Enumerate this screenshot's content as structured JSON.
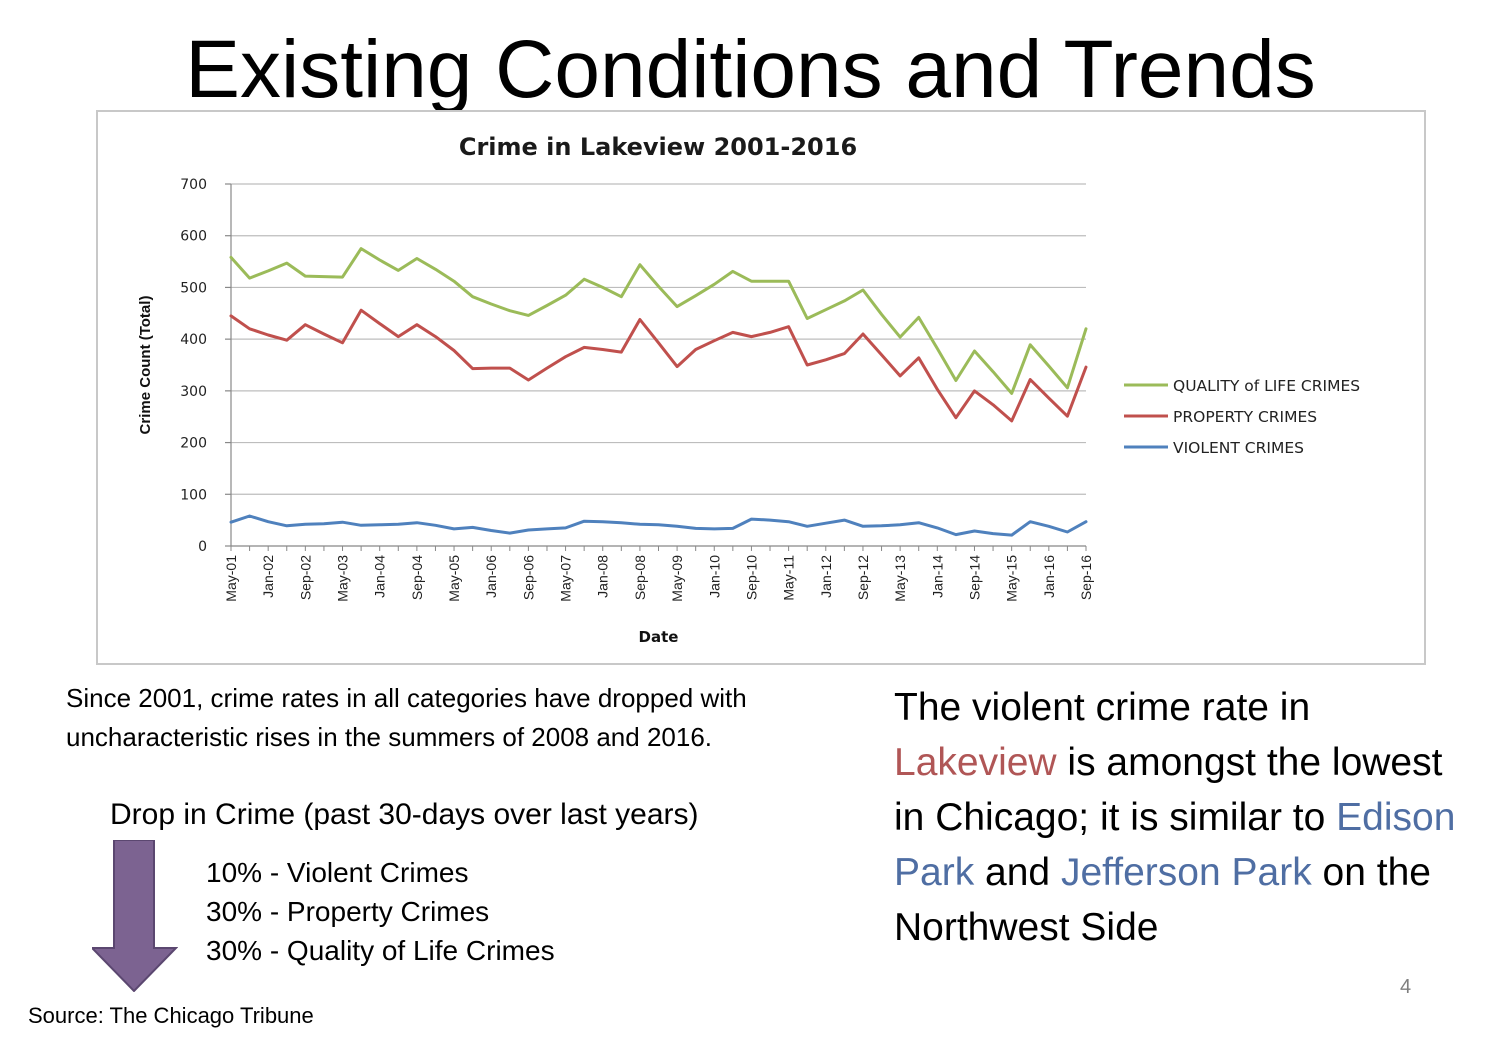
{
  "slide": {
    "title": "Existing Conditions and Trends",
    "caption": "Since 2001, crime rates in all categories have dropped with uncharacteristic rises in the summers of 2008 and 2016.",
    "drop_title": "Drop in Crime (past 30-days over last years)",
    "drop_items": [
      "10% - Violent Crimes",
      "30% - Property Crimes",
      "30% - Quality of Life Crimes"
    ],
    "right_text": {
      "p1": "The violent crime rate in ",
      "lakeview": "Lakeview",
      "p2": " is amongst the lowest in Chicago; it is similar to ",
      "edison": "Edison Park",
      "p3": " and ",
      "jefferson": "Jefferson Park",
      "p4": " on the Northwest Side"
    },
    "page_number": "4",
    "source": "Source: The Chicago Tribune",
    "colors": {
      "highlight_red": "#b05656",
      "highlight_blue": "#4f6ea3",
      "arrow": "#7c6391"
    }
  },
  "chart_data": {
    "type": "line",
    "title": "Crime in Lakeview 2001-2016",
    "xlabel": "Date",
    "ylabel": "Crime Count (Total)",
    "ylim": [
      0,
      700
    ],
    "yticks": [
      0,
      100,
      200,
      300,
      400,
      500,
      600,
      700
    ],
    "grid": true,
    "legend_position": "right",
    "x": [
      "May-01",
      "Sep-01",
      "Jan-02",
      "May-02",
      "Sep-02",
      "Jan-03",
      "May-03",
      "Sep-03",
      "Jan-04",
      "May-04",
      "Sep-04",
      "Jan-05",
      "May-05",
      "Sep-05",
      "Jan-06",
      "May-06",
      "Sep-06",
      "Jan-07",
      "May-07",
      "Sep-07",
      "Jan-08",
      "May-08",
      "Sep-08",
      "Jan-09",
      "May-09",
      "Sep-09",
      "Jan-10",
      "May-10",
      "Sep-10",
      "Jan-11",
      "May-11",
      "Sep-11",
      "Jan-12",
      "May-12",
      "Sep-12",
      "Jan-13",
      "May-13",
      "Sep-13",
      "Jan-14",
      "May-14",
      "Sep-14",
      "Jan-15",
      "May-15",
      "Sep-15",
      "Jan-16",
      "May-16",
      "Sep-16"
    ],
    "x_tick_labels": [
      "May-01",
      "Jan-02",
      "Sep-02",
      "May-03",
      "Jan-04",
      "Sep-04",
      "May-05",
      "Jan-06",
      "Sep-06",
      "May-07",
      "Jan-08",
      "Sep-08",
      "May-09",
      "Jan-10",
      "Sep-10",
      "May-11",
      "Jan-12",
      "Sep-12",
      "May-13",
      "Jan-14",
      "Sep-14",
      "May-15",
      "Jan-16",
      "Sep-16"
    ],
    "series": [
      {
        "name": "QUALITY of LIFE CRIMES",
        "color": "#9bbb59",
        "values": [
          558,
          518,
          532,
          547,
          522,
          521,
          520,
          575,
          553,
          533,
          556,
          535,
          512,
          482,
          468,
          455,
          446,
          465,
          485,
          516,
          500,
          482,
          544,
          502,
          463,
          484,
          506,
          531,
          512,
          512,
          512,
          440,
          457,
          474,
          495,
          448,
          404,
          442,
          382,
          320,
          377,
          337,
          295,
          389,
          348,
          306,
          420
        ]
      },
      {
        "name": "PROPERTY CRIMES",
        "color": "#c0504d",
        "values": [
          445,
          420,
          408,
          398,
          428,
          410,
          393,
          456,
          430,
          405,
          428,
          405,
          378,
          343,
          344,
          344,
          321,
          344,
          366,
          384,
          380,
          375,
          438,
          393,
          347,
          380,
          397,
          413,
          405,
          413,
          424,
          350,
          360,
          372,
          410,
          370,
          329,
          364,
          303,
          248,
          300,
          273,
          242,
          322,
          286,
          251,
          346
        ]
      },
      {
        "name": "VIOLENT CRIMES",
        "color": "#4f81bd",
        "values": [
          46,
          58,
          47,
          39,
          42,
          43,
          46,
          40,
          41,
          42,
          45,
          40,
          33,
          36,
          30,
          25,
          31,
          33,
          35,
          48,
          47,
          45,
          42,
          41,
          38,
          34,
          33,
          34,
          52,
          50,
          47,
          38,
          44,
          50,
          38,
          39,
          41,
          45,
          35,
          22,
          29,
          24,
          21,
          47,
          38,
          27,
          47
        ]
      }
    ]
  }
}
